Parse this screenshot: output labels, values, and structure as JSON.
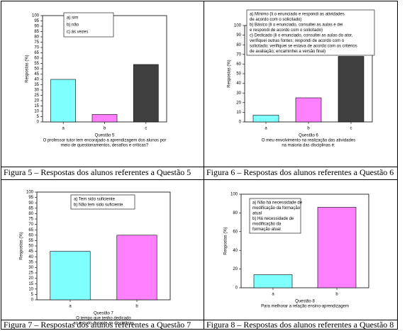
{
  "chart_data": [
    {
      "type": "bar",
      "ylabel": "Respostas (%)",
      "xlabel": "Questão 5",
      "note": [
        "O professor tutor tem encorajado a aprendizagem dos alunos por",
        "meio de questionamentos, desafios e críticas?"
      ],
      "categories": [
        "a",
        "b",
        "c"
      ],
      "values": [
        40,
        7,
        54
      ],
      "colors": [
        "#80ffff",
        "#ff80ff",
        "#404040"
      ],
      "ylim": [
        0,
        100
      ],
      "yticks": [
        0,
        5,
        10,
        15,
        20,
        25,
        30,
        35,
        40,
        45,
        50,
        55,
        60,
        65,
        70,
        75,
        80,
        85,
        90,
        95,
        100
      ],
      "legend": [
        "a) sim",
        "b) não",
        "c) às vezes"
      ]
    },
    {
      "type": "bar",
      "ylabel": "Respostas (%)",
      "xlabel": "Questão 6",
      "note": [
        "O meu envolvimento na realização das atividades",
        "na maioria das disciplinas é:"
      ],
      "categories": [
        "a",
        "b",
        "c"
      ],
      "values": [
        7,
        25,
        68
      ],
      "colors": [
        "#80ffff",
        "#ff80ff",
        "#404040"
      ],
      "ylim": [
        0,
        100
      ],
      "yticks": [
        0,
        10,
        20,
        30,
        40,
        50,
        60,
        70,
        80,
        90,
        100
      ],
      "legend": [
        "a) Mínimo (li o enunciado e respondi as atividades",
        "de acordo com o solicitado)",
        "b) Básico (li o enunciado, consultei as aulas e dei",
        "e respondi de acordo com o solicitado)",
        "c) Dedicado (li o enunciado, consultei as aulas do ator,",
        "verifiquei outras fontes; respondi de acordo com o",
        "solicitado; verifiquei se estava de acordo com os critérios",
        "de avaliação; encaminhei a versão final)"
      ]
    },
    {
      "type": "bar",
      "ylabel": "Respostas (%)",
      "xlabel": "Questão 7",
      "note": [
        "O tempo que tenho dedicado",
        "ao estudo durante as disciplinas"
      ],
      "categories": [
        "a",
        "b"
      ],
      "values": [
        45,
        60
      ],
      "colors": [
        "#80ffff",
        "#ff80ff"
      ],
      "ylim": [
        0,
        100
      ],
      "yticks": [
        0,
        5,
        10,
        15,
        20,
        25,
        30,
        35,
        40,
        45,
        50,
        55,
        60,
        65,
        70,
        75,
        80,
        85,
        90,
        95,
        100
      ],
      "legend": [
        "a) Tem sido suficiente",
        "b) Não tem sido suficiente"
      ]
    },
    {
      "type": "bar",
      "ylabel": "Respostas (%)",
      "xlabel": "Questão 8",
      "note": [
        "Para melhorar a relação ensino-aprendizagem"
      ],
      "categories": [
        "a",
        "b"
      ],
      "values": [
        14,
        86
      ],
      "colors": [
        "#80ffff",
        "#ff80ff"
      ],
      "ylim": [
        0,
        100
      ],
      "yticks": [
        0,
        20,
        40,
        60,
        80,
        100
      ],
      "legend": [
        "a) Não há necessidade de",
        "modificação da formação",
        "atual",
        "b) Há necessidade de",
        "modificação da",
        "formação atual"
      ]
    }
  ],
  "captions": [
    "Figura 5 – Respostas dos alunos referentes a Questão 5",
    "Figura 6 – Respostas dos alunos referentes a Questão 6",
    "Figura 7 – Respostas dos alunos referentes a Questão 7",
    "Figura 8 – Respostas dos alunos referentes a Questão 8"
  ]
}
